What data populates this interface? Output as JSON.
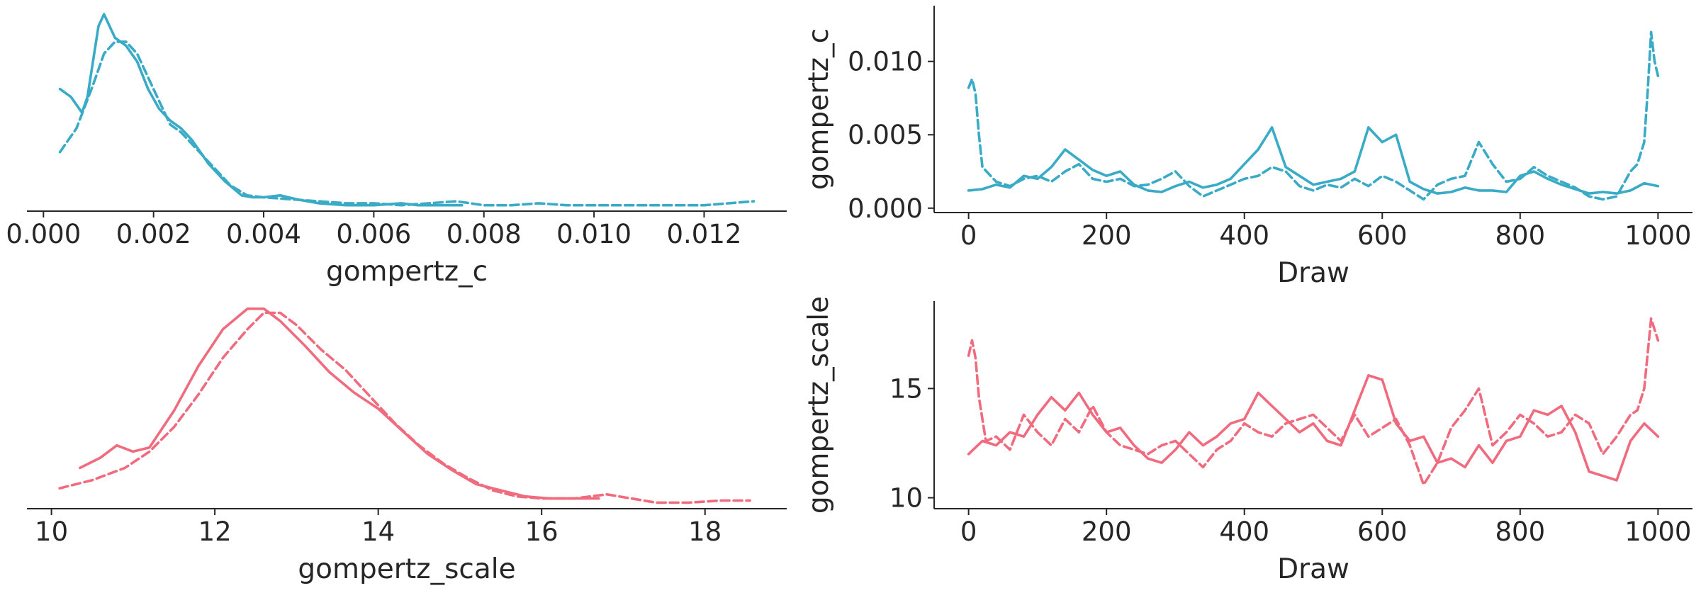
{
  "colors": {
    "teal": "#3aabc6",
    "pink": "#f06b7e",
    "axis": "#262626"
  },
  "chart_data": [
    {
      "type": "line",
      "panel": "kde-gompertz-c",
      "xlabel": "gompertz_c",
      "ylabel": "",
      "xlim": [
        -0.0003,
        0.0135
      ],
      "ylim": [
        0,
        1
      ],
      "xticks": [
        0.0,
        0.002,
        0.004,
        0.006,
        0.008,
        0.01,
        0.012
      ],
      "xtick_labels": [
        "0.000",
        "0.002",
        "0.004",
        "0.006",
        "0.008",
        "0.010",
        "0.012"
      ],
      "grid": false,
      "color": "teal",
      "series": [
        {
          "style": "solid",
          "x": [
            0.0003,
            0.0005,
            0.0007,
            0.0008,
            0.0009,
            0.001,
            0.0011,
            0.0012,
            0.0013,
            0.0015,
            0.0017,
            0.0019,
            0.0021,
            0.0023,
            0.0025,
            0.0027,
            0.003,
            0.0033,
            0.0036,
            0.0038,
            0.004,
            0.0043,
            0.0046,
            0.005,
            0.0055,
            0.006,
            0.0065,
            0.0068,
            0.0072,
            0.0076
          ],
          "y": [
            0.62,
            0.58,
            0.5,
            0.58,
            0.76,
            0.94,
            1.0,
            0.94,
            0.88,
            0.84,
            0.76,
            0.62,
            0.52,
            0.46,
            0.42,
            0.36,
            0.24,
            0.15,
            0.08,
            0.07,
            0.07,
            0.08,
            0.06,
            0.04,
            0.03,
            0.03,
            0.04,
            0.03,
            0.03,
            0.03
          ]
        },
        {
          "style": "dashed",
          "x": [
            0.0003,
            0.0006,
            0.0009,
            0.0011,
            0.0013,
            0.0015,
            0.0017,
            0.0019,
            0.0021,
            0.0023,
            0.0025,
            0.0028,
            0.0031,
            0.0034,
            0.0037,
            0.004,
            0.0045,
            0.005,
            0.0055,
            0.006,
            0.0065,
            0.007,
            0.0075,
            0.008,
            0.0085,
            0.009,
            0.0095,
            0.01,
            0.011,
            0.012,
            0.0129
          ],
          "y": [
            0.3,
            0.42,
            0.64,
            0.8,
            0.86,
            0.86,
            0.8,
            0.68,
            0.56,
            0.44,
            0.4,
            0.31,
            0.22,
            0.13,
            0.08,
            0.07,
            0.06,
            0.05,
            0.04,
            0.04,
            0.03,
            0.04,
            0.05,
            0.03,
            0.03,
            0.04,
            0.03,
            0.03,
            0.03,
            0.03,
            0.05
          ]
        }
      ]
    },
    {
      "type": "line",
      "panel": "trace-gompertz-c",
      "xlabel": "Draw",
      "ylabel": "gompertz_c",
      "xlim": [
        -50,
        1050
      ],
      "ylim": [
        -0.0003,
        0.0138
      ],
      "xticks": [
        0,
        200,
        400,
        600,
        800,
        1000
      ],
      "xtick_labels": [
        "0",
        "200",
        "400",
        "600",
        "800",
        "1000"
      ],
      "yticks": [
        0.0,
        0.005,
        0.01
      ],
      "ytick_labels": [
        "0.000",
        "0.005",
        "0.010"
      ],
      "grid": false,
      "color": "teal",
      "series": [
        {
          "style": "solid",
          "x": [
            0,
            20,
            40,
            60,
            80,
            100,
            120,
            140,
            160,
            180,
            200,
            220,
            240,
            260,
            280,
            300,
            320,
            340,
            360,
            380,
            400,
            420,
            440,
            460,
            480,
            500,
            520,
            540,
            560,
            580,
            600,
            620,
            640,
            660,
            680,
            700,
            720,
            740,
            760,
            780,
            800,
            820,
            840,
            860,
            880,
            900,
            920,
            940,
            960,
            980,
            1000
          ],
          "y": [
            0.0012,
            0.0013,
            0.0016,
            0.0014,
            0.0022,
            0.002,
            0.0028,
            0.004,
            0.0033,
            0.0026,
            0.0022,
            0.0025,
            0.0016,
            0.0012,
            0.0011,
            0.0015,
            0.0018,
            0.0014,
            0.0016,
            0.002,
            0.003,
            0.004,
            0.0055,
            0.0028,
            0.0022,
            0.0016,
            0.0018,
            0.002,
            0.0025,
            0.0055,
            0.0045,
            0.005,
            0.0018,
            0.0013,
            0.001,
            0.0011,
            0.0014,
            0.0012,
            0.0012,
            0.0011,
            0.0022,
            0.0025,
            0.002,
            0.0016,
            0.0013,
            0.001,
            0.0011,
            0.001,
            0.0012,
            0.0017,
            0.0015
          ]
        },
        {
          "style": "dashed",
          "x": [
            0,
            5,
            10,
            15,
            20,
            40,
            60,
            80,
            100,
            120,
            140,
            160,
            180,
            200,
            220,
            240,
            260,
            280,
            300,
            320,
            340,
            360,
            380,
            400,
            420,
            440,
            460,
            480,
            500,
            520,
            540,
            560,
            580,
            600,
            620,
            640,
            660,
            680,
            700,
            720,
            740,
            760,
            780,
            800,
            820,
            840,
            860,
            880,
            900,
            920,
            940,
            960,
            970,
            980,
            985,
            990,
            995,
            1000
          ],
          "y": [
            0.0082,
            0.0088,
            0.0078,
            0.005,
            0.0028,
            0.0018,
            0.0015,
            0.002,
            0.0022,
            0.0018,
            0.0025,
            0.003,
            0.002,
            0.0018,
            0.002,
            0.0015,
            0.0016,
            0.002,
            0.0025,
            0.0015,
            0.0008,
            0.0012,
            0.0016,
            0.002,
            0.0022,
            0.0028,
            0.0025,
            0.0015,
            0.0012,
            0.0016,
            0.0014,
            0.002,
            0.0015,
            0.0022,
            0.0018,
            0.0012,
            0.0006,
            0.0016,
            0.002,
            0.0022,
            0.0045,
            0.003,
            0.0018,
            0.002,
            0.0028,
            0.0022,
            0.0018,
            0.0014,
            0.0008,
            0.0006,
            0.0008,
            0.0025,
            0.003,
            0.0045,
            0.008,
            0.012,
            0.01,
            0.009
          ]
        }
      ]
    },
    {
      "type": "line",
      "panel": "kde-gompertz-scale",
      "xlabel": "gompertz_scale",
      "ylabel": "",
      "xlim": [
        9.7,
        19.0
      ],
      "ylim": [
        0,
        1
      ],
      "xticks": [
        10,
        12,
        14,
        16,
        18
      ],
      "xtick_labels": [
        "10",
        "12",
        "14",
        "16",
        "18"
      ],
      "grid": false,
      "color": "pink",
      "series": [
        {
          "style": "solid",
          "x": [
            10.35,
            10.6,
            10.8,
            11.0,
            11.2,
            11.5,
            11.8,
            12.1,
            12.4,
            12.6,
            12.8,
            13.1,
            13.4,
            13.7,
            14.0,
            14.3,
            14.6,
            14.9,
            15.2,
            15.5,
            15.8,
            16.1,
            16.4,
            16.7
          ],
          "y": [
            0.2,
            0.25,
            0.31,
            0.28,
            0.3,
            0.48,
            0.7,
            0.88,
            0.98,
            0.98,
            0.92,
            0.8,
            0.67,
            0.57,
            0.49,
            0.38,
            0.27,
            0.19,
            0.12,
            0.09,
            0.06,
            0.05,
            0.05,
            0.05
          ]
        },
        {
          "style": "dashed",
          "x": [
            10.1,
            10.5,
            10.9,
            11.2,
            11.5,
            11.8,
            12.1,
            12.4,
            12.6,
            12.8,
            13.0,
            13.3,
            13.6,
            13.9,
            14.2,
            14.5,
            14.8,
            15.1,
            15.4,
            15.7,
            16.0,
            16.4,
            16.8,
            17.1,
            17.4,
            17.8,
            18.2,
            18.55
          ],
          "y": [
            0.1,
            0.14,
            0.2,
            0.28,
            0.4,
            0.56,
            0.74,
            0.88,
            0.96,
            0.96,
            0.9,
            0.78,
            0.68,
            0.55,
            0.42,
            0.31,
            0.22,
            0.15,
            0.09,
            0.06,
            0.05,
            0.05,
            0.07,
            0.05,
            0.03,
            0.03,
            0.04,
            0.04
          ]
        }
      ]
    },
    {
      "type": "line",
      "panel": "trace-gompertz-scale",
      "xlabel": "Draw",
      "ylabel": "gompertz_scale",
      "xlim": [
        -50,
        1050
      ],
      "ylim": [
        9.5,
        19.0
      ],
      "xticks": [
        0,
        200,
        400,
        600,
        800,
        1000
      ],
      "xtick_labels": [
        "0",
        "200",
        "400",
        "600",
        "800",
        "1000"
      ],
      "yticks": [
        10,
        15
      ],
      "ytick_labels": [
        "10",
        "15"
      ],
      "grid": false,
      "color": "pink",
      "series": [
        {
          "style": "solid",
          "x": [
            0,
            20,
            40,
            60,
            80,
            100,
            120,
            140,
            160,
            180,
            200,
            220,
            240,
            260,
            280,
            300,
            320,
            340,
            360,
            380,
            400,
            420,
            440,
            460,
            480,
            500,
            520,
            540,
            560,
            580,
            600,
            620,
            640,
            660,
            680,
            700,
            720,
            740,
            760,
            780,
            800,
            820,
            840,
            860,
            880,
            900,
            920,
            940,
            960,
            980,
            1000
          ],
          "y": [
            12.0,
            12.6,
            12.4,
            13.0,
            12.8,
            13.8,
            14.6,
            14.0,
            14.8,
            13.8,
            13.0,
            13.2,
            12.4,
            11.8,
            11.6,
            12.2,
            13.0,
            12.4,
            12.8,
            13.4,
            13.6,
            14.8,
            14.2,
            13.6,
            13.0,
            13.4,
            12.6,
            12.4,
            14.0,
            15.6,
            15.4,
            13.4,
            12.6,
            12.8,
            11.6,
            11.8,
            11.4,
            12.4,
            11.6,
            12.6,
            12.8,
            14.0,
            13.8,
            14.2,
            13.0,
            11.2,
            11.0,
            10.8,
            12.6,
            13.4,
            12.8
          ]
        },
        {
          "style": "dashed",
          "x": [
            0,
            5,
            10,
            15,
            25,
            40,
            60,
            80,
            100,
            120,
            140,
            160,
            180,
            200,
            220,
            240,
            260,
            280,
            300,
            320,
            340,
            360,
            380,
            400,
            420,
            440,
            460,
            480,
            500,
            520,
            540,
            560,
            580,
            600,
            620,
            640,
            660,
            680,
            700,
            720,
            740,
            760,
            780,
            800,
            820,
            840,
            860,
            880,
            900,
            920,
            940,
            960,
            970,
            980,
            990,
            1000
          ],
          "y": [
            16.5,
            17.2,
            16.4,
            14.6,
            12.6,
            12.8,
            12.2,
            13.8,
            13.0,
            12.4,
            13.6,
            13.0,
            14.2,
            13.0,
            12.4,
            12.2,
            12.0,
            12.4,
            12.6,
            12.0,
            11.4,
            12.2,
            12.6,
            13.4,
            13.0,
            12.8,
            13.4,
            13.6,
            13.8,
            13.2,
            12.6,
            13.8,
            12.8,
            13.2,
            13.6,
            12.4,
            10.6,
            11.6,
            13.2,
            14.0,
            15.0,
            12.4,
            13.0,
            13.8,
            13.4,
            12.8,
            13.0,
            13.8,
            13.4,
            12.0,
            12.8,
            13.8,
            14.0,
            15.0,
            18.2,
            17.2
          ]
        }
      ]
    }
  ]
}
